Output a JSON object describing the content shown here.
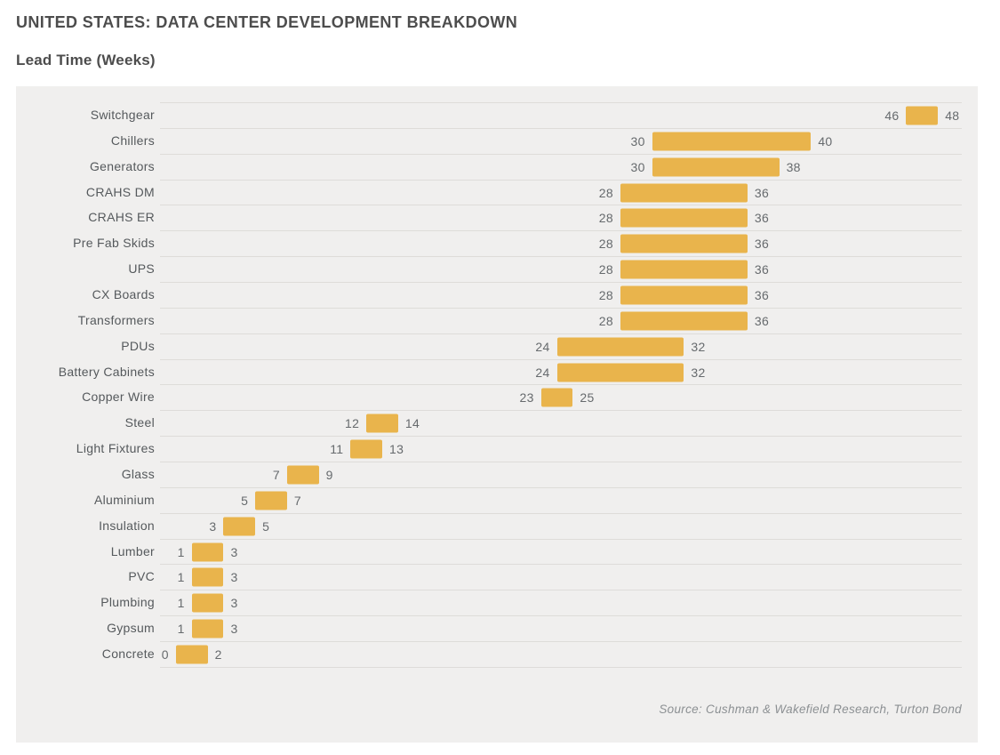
{
  "header": {
    "title": "UNITED STATES: DATA CENTER DEVELOPMENT BREAKDOWN",
    "subtitle": "Lead Time (Weeks)"
  },
  "source": "Source: Cushman & Wakefield Research, Turton Bond",
  "colors": {
    "bar": "#E9B44C",
    "panel_bg": "#F0EFEE",
    "gridline": "#DEDCD9",
    "title_text": "#4D4D4D",
    "row_label_text": "#55595C",
    "value_text": "#666A6D",
    "source_text": "#8C9093"
  },
  "chart_data": {
    "type": "bar",
    "subtype": "horizontal-range",
    "title": "UNITED STATES: DATA CENTER DEVELOPMENT BREAKDOWN",
    "xlabel": "Lead Time (Weeks)",
    "ylabel": "",
    "unit": "weeks",
    "xlim": [
      -1,
      49.5
    ],
    "grid": "row-separators-only",
    "legend": "none",
    "value_labels": "min and max shown beside each bar",
    "categories": [
      "Switchgear",
      "Chillers",
      "Generators",
      "CRAHS DM",
      "CRAHS ER",
      "Pre Fab Skids",
      "UPS",
      "CX Boards",
      "Transformers",
      "PDUs",
      "Battery Cabinets",
      "Copper Wire",
      "Steel",
      "Light Fixtures",
      "Glass",
      "Aluminium",
      "Insulation",
      "Lumber",
      "PVC",
      "Plumbing",
      "Gypsum",
      "Concrete"
    ],
    "series": [
      {
        "name": "lead_time_min_weeks",
        "values": [
          46,
          30,
          30,
          28,
          28,
          28,
          28,
          28,
          28,
          24,
          24,
          23,
          12,
          11,
          7,
          5,
          3,
          1,
          1,
          1,
          1,
          0
        ]
      },
      {
        "name": "lead_time_max_weeks",
        "values": [
          48,
          40,
          38,
          36,
          36,
          36,
          36,
          36,
          36,
          32,
          32,
          25,
          14,
          13,
          9,
          7,
          5,
          3,
          3,
          3,
          3,
          2
        ]
      }
    ]
  }
}
